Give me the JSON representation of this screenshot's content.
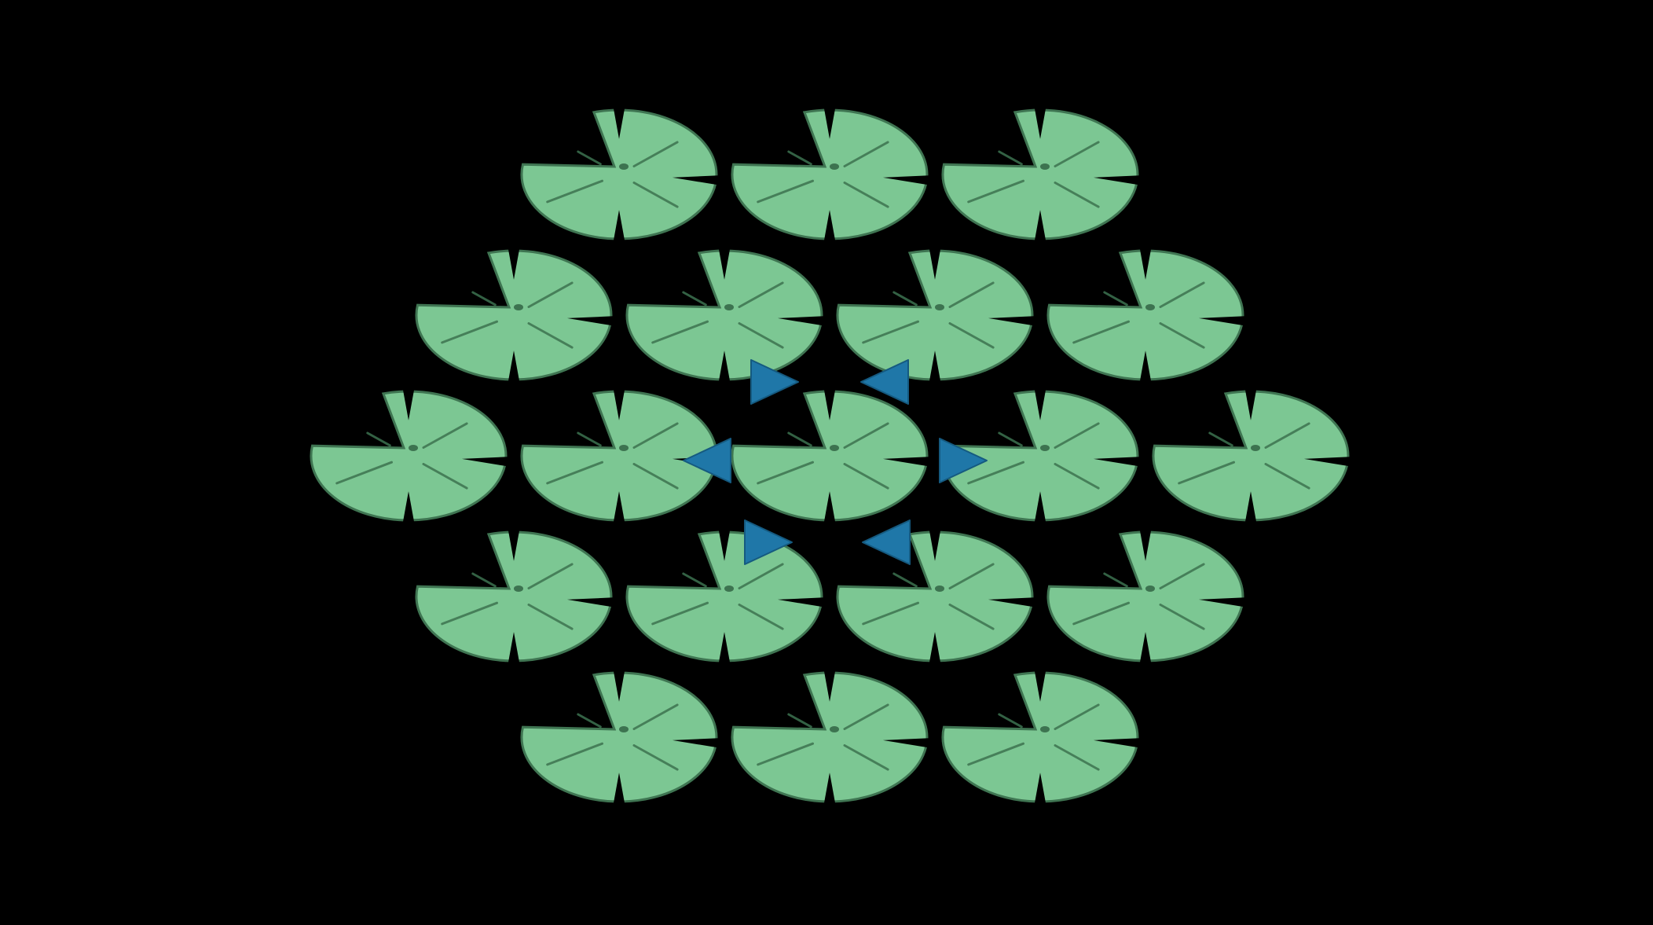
{
  "game": {
    "background_color": "#000000",
    "pad_color": "#7CC793",
    "pad_outline_color": "#3F7552",
    "pad_vein_color": "#3D7350",
    "arrow_color": "#1F77A8",
    "arrow_edge_color": "#155A80"
  },
  "board": {
    "layout": "hexagon",
    "row_counts": [
      3,
      4,
      5,
      4,
      3
    ],
    "selected": {
      "row": 2,
      "col": 2
    },
    "move_directions": [
      {
        "name": "up-left",
        "pointing": "right"
      },
      {
        "name": "up-right",
        "pointing": "left"
      },
      {
        "name": "left",
        "pointing": "left"
      },
      {
        "name": "right",
        "pointing": "right"
      },
      {
        "name": "down-left",
        "pointing": "right"
      },
      {
        "name": "down-right",
        "pointing": "left"
      }
    ]
  }
}
